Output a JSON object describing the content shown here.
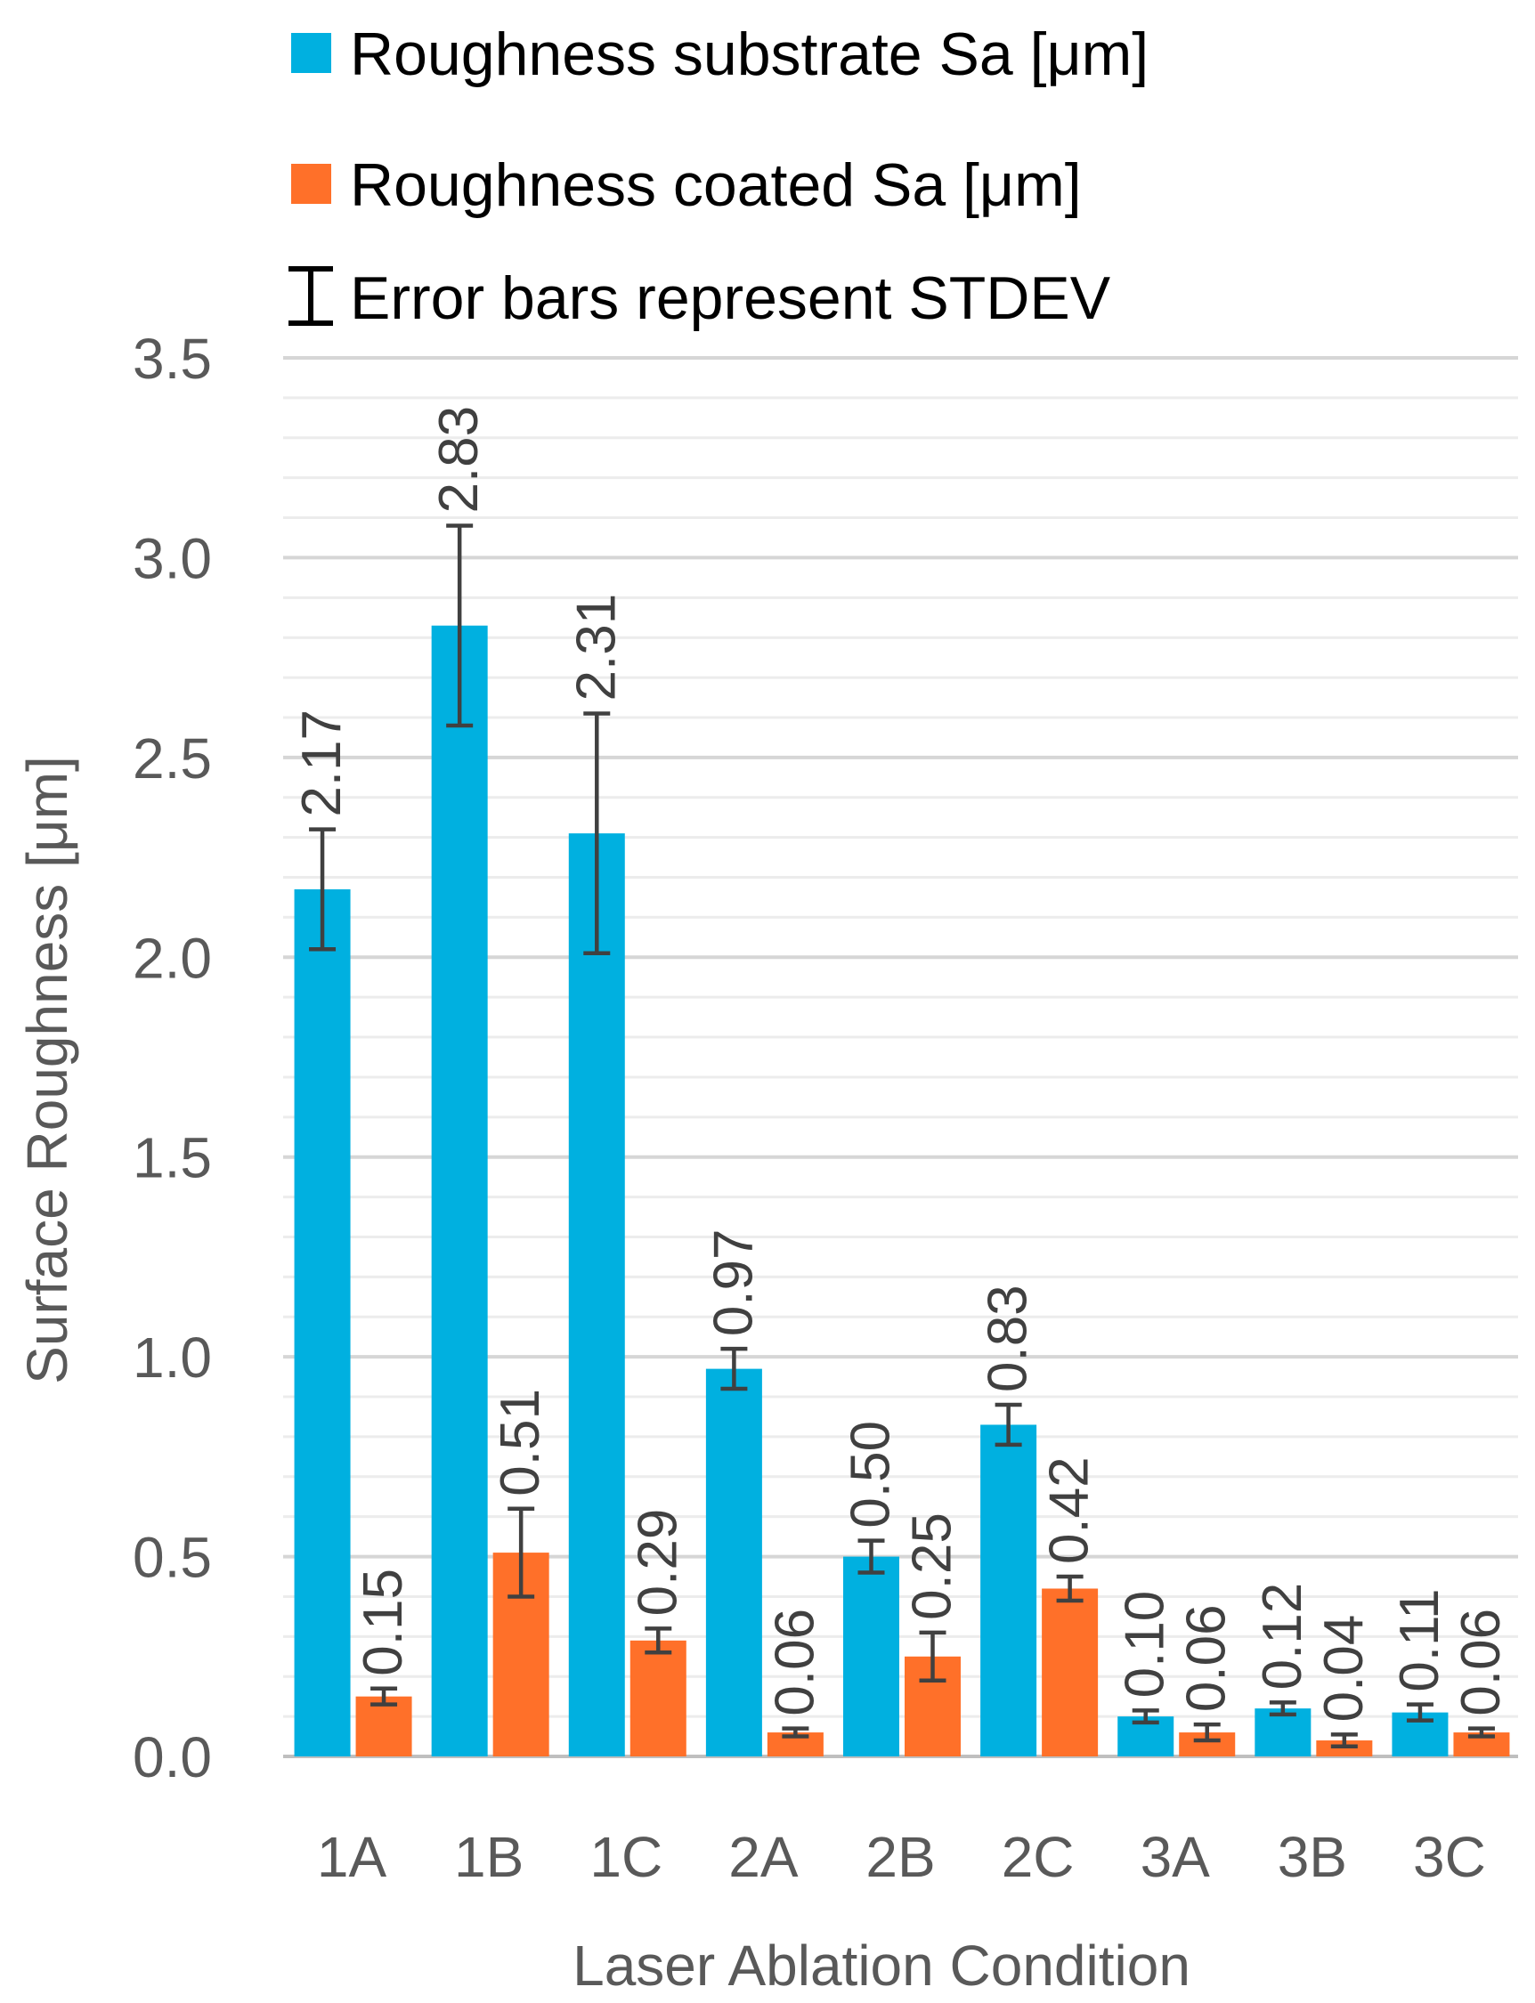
{
  "chart_data": {
    "type": "bar",
    "title": "",
    "xlabel": "Laser Ablation Condition",
    "ylabel": "Surface Roughness [μm]",
    "ylim": [
      0,
      3.5
    ],
    "yticks": [
      "0.0",
      "0.5",
      "1.0",
      "1.5",
      "2.0",
      "2.5",
      "3.0",
      "3.5"
    ],
    "ytick_values": [
      0,
      0.5,
      1.0,
      1.5,
      2.0,
      2.5,
      3.0,
      3.5
    ],
    "minor_grid_step": 0.1,
    "categories": [
      "1A",
      "1B",
      "1C",
      "2A",
      "2B",
      "2C",
      "3A",
      "3B",
      "3C"
    ],
    "legend_note": "Error bars represent  STDEV",
    "legend_position": "top-left",
    "series": [
      {
        "name": "Roughness substrate Sa [μm]",
        "color": "#00B0E0",
        "values": [
          2.17,
          2.83,
          2.31,
          0.97,
          0.5,
          0.83,
          0.1,
          0.12,
          0.11
        ],
        "labels": [
          "2.17",
          "2.83",
          "2.31",
          "0.97",
          "0.50",
          "0.83",
          "0.10",
          "0.12",
          "0.11"
        ],
        "stdev": [
          0.15,
          0.25,
          0.3,
          0.05,
          0.04,
          0.05,
          0.015,
          0.015,
          0.02
        ]
      },
      {
        "name": "Roughness coated Sa [μm]",
        "color": "#FF7029",
        "values": [
          0.15,
          0.51,
          0.29,
          0.06,
          0.25,
          0.42,
          0.06,
          0.04,
          0.06
        ],
        "labels": [
          "0.15",
          "0.51",
          "0.29",
          "0.06",
          "0.25",
          "0.42",
          "0.06",
          "0.04",
          "0.06"
        ],
        "stdev": [
          0.02,
          0.11,
          0.03,
          0.01,
          0.06,
          0.03,
          0.02,
          0.015,
          0.01
        ]
      }
    ]
  }
}
